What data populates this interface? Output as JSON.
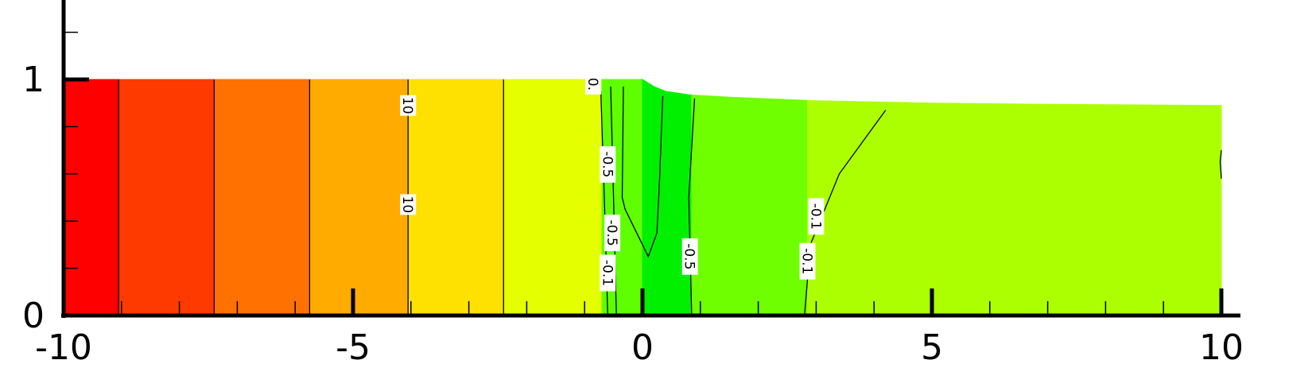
{
  "chart_data": {
    "type": "heatmap",
    "title": "",
    "xlabel": "",
    "ylabel": "",
    "xlim": [
      -10,
      10
    ],
    "ylim": [
      0,
      1.5
    ],
    "grid": false,
    "legend": "none",
    "x_ticks": [
      {
        "value": -10,
        "label": "-10"
      },
      {
        "value": -5,
        "label": "-5"
      },
      {
        "value": 0,
        "label": "0"
      },
      {
        "value": 5,
        "label": "5"
      },
      {
        "value": 10,
        "label": "10"
      }
    ],
    "y_ticks": [
      {
        "value": 0,
        "label": "0"
      },
      {
        "value": 1,
        "label": "1"
      }
    ],
    "x_minor_step": 1,
    "y_minor_step": 0.2,
    "upper_surface": [
      [
        -10,
        1.0
      ],
      [
        0,
        1.0
      ],
      [
        0.2,
        0.97
      ],
      [
        0.4,
        0.95
      ],
      [
        0.8,
        0.935
      ],
      [
        1.5,
        0.925
      ],
      [
        3,
        0.91
      ],
      [
        5,
        0.9
      ],
      [
        7,
        0.895
      ],
      [
        10,
        0.89
      ]
    ],
    "bands": [
      {
        "x_from": -10,
        "x_to": -9.05,
        "color": "#ff0000"
      },
      {
        "x_from": -9.05,
        "x_to": -7.4,
        "color": "#ff3a00"
      },
      {
        "x_from": -7.4,
        "x_to": -5.75,
        "color": "#ff7100"
      },
      {
        "x_from": -5.75,
        "x_to": -4.05,
        "color": "#ffab00"
      },
      {
        "x_from": -4.05,
        "x_to": -2.4,
        "color": "#ffe100"
      },
      {
        "x_from": -2.4,
        "x_to": -0.7,
        "color": "#e4ff00"
      },
      {
        "x_from": -0.7,
        "x_to": 0.0,
        "color": "#60ff00"
      },
      {
        "x_from": 0.0,
        "x_to": 0.85,
        "color": "#00f000"
      },
      {
        "x_from": 0.85,
        "x_to": 2.85,
        "color": "#6fff00"
      },
      {
        "x_from": 2.85,
        "x_to": 10,
        "color": "#acff00"
      }
    ],
    "contours": [
      {
        "points": [
          [
            -9.05,
            0
          ],
          [
            -9.05,
            1
          ]
        ]
      },
      {
        "points": [
          [
            -7.4,
            0
          ],
          [
            -7.4,
            1
          ]
        ]
      },
      {
        "points": [
          [
            -5.75,
            0
          ],
          [
            -5.75,
            1
          ]
        ]
      },
      {
        "points": [
          [
            -4.05,
            0
          ],
          [
            -4.05,
            1
          ]
        ]
      },
      {
        "points": [
          [
            -2.4,
            0
          ],
          [
            -2.4,
            1
          ]
        ]
      },
      {
        "points": [
          [
            -0.6,
            0
          ],
          [
            -0.66,
            0.5
          ],
          [
            -0.72,
            0.95
          ]
        ]
      },
      {
        "points": [
          [
            -0.45,
            0
          ],
          [
            -0.5,
            0.5
          ],
          [
            -0.55,
            0.97
          ]
        ]
      },
      {
        "points": [
          [
            -0.33,
            0.97
          ],
          [
            -0.35,
            0.5
          ],
          [
            -0.3,
            0.45
          ],
          [
            0.1,
            0.25
          ],
          [
            0.25,
            0.35
          ],
          [
            0.3,
            0.6
          ],
          [
            0.35,
            0.93
          ]
        ]
      },
      {
        "points": [
          [
            0.85,
            0
          ],
          [
            0.8,
            0.5
          ],
          [
            0.9,
            0.92
          ]
        ]
      },
      {
        "points": [
          [
            2.8,
            0
          ],
          [
            2.9,
            0.3
          ],
          [
            3.4,
            0.6
          ],
          [
            4.2,
            0.87
          ]
        ]
      },
      {
        "points": [
          [
            10,
            0.58
          ],
          [
            9.98,
            0.65
          ],
          [
            10,
            0.7
          ]
        ]
      }
    ],
    "contour_labels": [
      {
        "text": "10",
        "x": -4.05,
        "y": 0.89
      },
      {
        "text": "10",
        "x": -4.05,
        "y": 0.47
      },
      {
        "text": "0.",
        "x": -0.85,
        "y": 0.98
      },
      {
        "text": "-0.5",
        "x": -0.6,
        "y": 0.64
      },
      {
        "text": "-0.5",
        "x": -0.52,
        "y": 0.35
      },
      {
        "text": "-0.1",
        "x": -0.6,
        "y": 0.18
      },
      {
        "text": "-0.5",
        "x": 0.82,
        "y": 0.25
      },
      {
        "text": "-0.1",
        "x": 3.0,
        "y": 0.42
      },
      {
        "text": "-0.1",
        "x": 2.85,
        "y": 0.23
      }
    ]
  }
}
